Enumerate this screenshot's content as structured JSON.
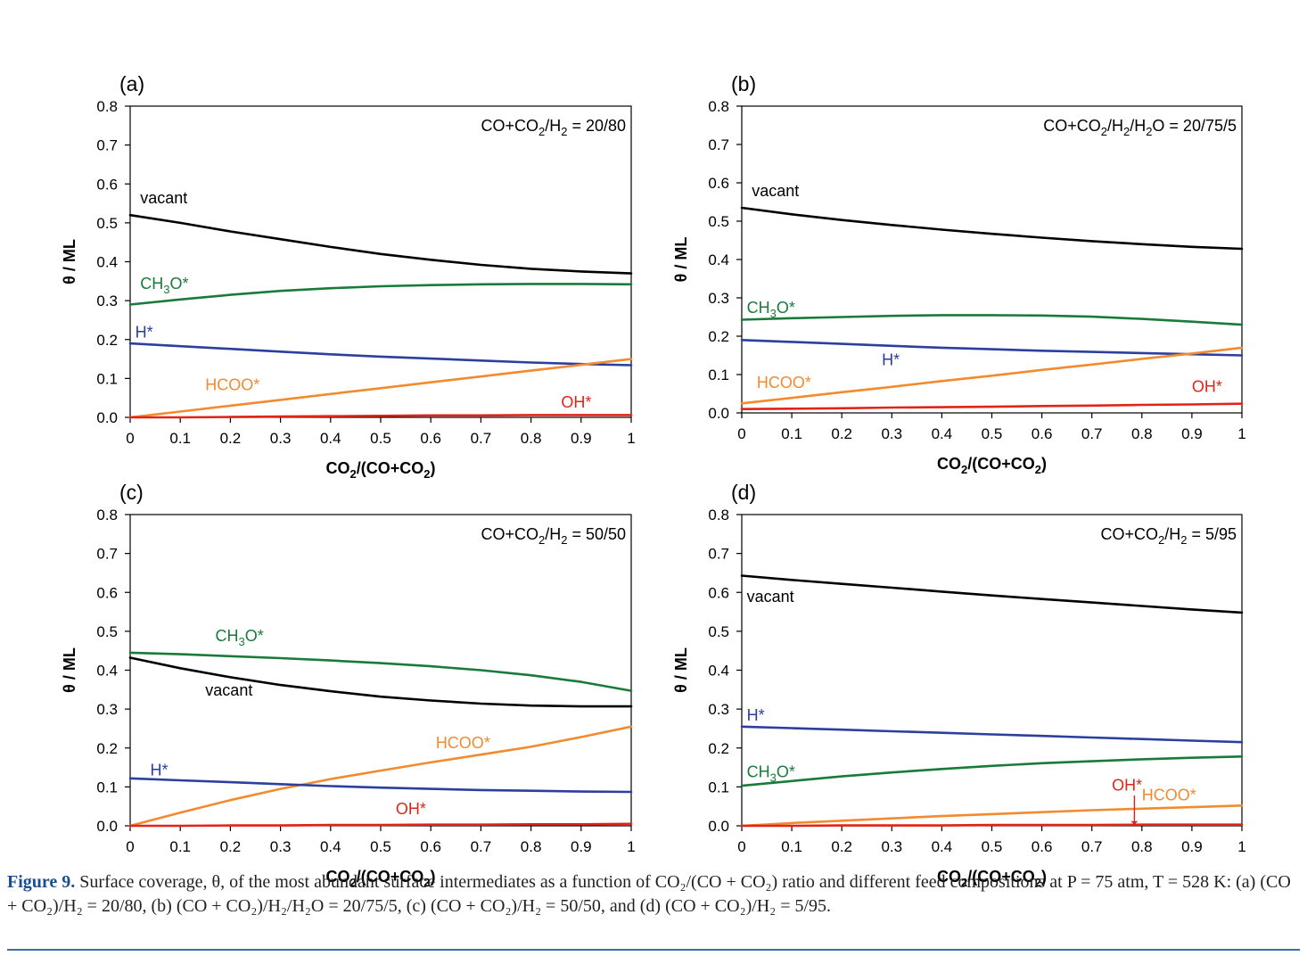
{
  "caption": {
    "label": "Figure 9.",
    "text": "Surface coverage, θ, of the most abundant surface intermediates as a function of CO₂/(CO + CO₂) ratio and different feed compositions at P = 75 atm, T = 528 K: (a) (CO + CO₂)/H₂ = 20/80, (b) (CO + CO₂)/H₂/H₂O = 20/75/5, (c) (CO + CO₂)/H₂ = 50/50, and (d) (CO + CO₂)/H₂ = 5/95."
  },
  "colors": {
    "vacant": "#000000",
    "CH3O": "#1a7a3a",
    "H": "#2b3f9e",
    "HCOO": "#f28a30",
    "OH": "#e02418"
  },
  "chart_data": [
    {
      "type": "line",
      "panel_label": "(a)",
      "annotation": "CO+CO2/H2 = 20/80",
      "xlabel": "CO2/(CO+CO2)",
      "ylabel": "θ / ML",
      "xlim": [
        0,
        1
      ],
      "ylim": [
        0,
        0.8
      ],
      "xticks": [
        "0",
        "0.1",
        "0.2",
        "0.3",
        "0.4",
        "0.5",
        "0.6",
        "0.7",
        "0.8",
        "0.9",
        "1"
      ],
      "yticks": [
        "0.0",
        "0.1",
        "0.2",
        "0.3",
        "0.4",
        "0.5",
        "0.6",
        "0.7",
        "0.8"
      ],
      "x": [
        0,
        0.1,
        0.2,
        0.3,
        0.4,
        0.5,
        0.6,
        0.7,
        0.8,
        0.9,
        1.0
      ],
      "series": [
        {
          "name": "vacant",
          "label_text": "vacant",
          "color": "#000000",
          "label_pos": [
            0.02,
            0.55
          ],
          "values": [
            0.52,
            0.5,
            0.478,
            0.458,
            0.438,
            0.42,
            0.405,
            0.392,
            0.382,
            0.375,
            0.37
          ]
        },
        {
          "name": "CH3O*",
          "label_text": "CH3O*",
          "color": "#1a7a3a",
          "label_pos": [
            0.02,
            0.33
          ],
          "values": [
            0.29,
            0.303,
            0.315,
            0.325,
            0.332,
            0.337,
            0.34,
            0.342,
            0.343,
            0.343,
            0.342
          ]
        },
        {
          "name": "H*",
          "label_text": "H*",
          "color": "#2b3f9e",
          "label_pos": [
            0.01,
            0.205
          ],
          "values": [
            0.19,
            0.183,
            0.176,
            0.169,
            0.162,
            0.156,
            0.151,
            0.146,
            0.141,
            0.137,
            0.134
          ]
        },
        {
          "name": "HCOO*",
          "label_text": "HCOO*",
          "color": "#f28a30",
          "label_pos": [
            0.15,
            0.07
          ],
          "values": [
            0.0,
            0.015,
            0.03,
            0.045,
            0.06,
            0.075,
            0.09,
            0.105,
            0.12,
            0.135,
            0.15
          ]
        },
        {
          "name": "OH*",
          "label_text": "OH*",
          "color": "#e02418",
          "label_pos": [
            0.86,
            0.025
          ],
          "values": [
            0.0,
            0.0,
            0.001,
            0.002,
            0.003,
            0.004,
            0.005,
            0.005,
            0.006,
            0.006,
            0.006
          ]
        }
      ]
    },
    {
      "type": "line",
      "panel_label": "(b)",
      "annotation": "CO+CO2/H2/H2O = 20/75/5",
      "xlabel": "CO2/(CO+CO2)",
      "ylabel": "θ / ML",
      "xlim": [
        0,
        1
      ],
      "ylim": [
        0,
        0.8
      ],
      "xticks": [
        "0",
        "0.1",
        "0.2",
        "0.3",
        "0.4",
        "0.5",
        "0.6",
        "0.7",
        "0.8",
        "0.9",
        "1"
      ],
      "yticks": [
        "0.0",
        "0.1",
        "0.2",
        "0.3",
        "0.4",
        "0.5",
        "0.6",
        "0.7",
        "0.8"
      ],
      "x": [
        0,
        0.1,
        0.2,
        0.3,
        0.4,
        0.5,
        0.6,
        0.7,
        0.8,
        0.9,
        1.0
      ],
      "series": [
        {
          "name": "vacant",
          "label_text": "vacant",
          "color": "#000000",
          "label_pos": [
            0.02,
            0.565
          ],
          "values": [
            0.535,
            0.518,
            0.503,
            0.49,
            0.478,
            0.467,
            0.457,
            0.448,
            0.44,
            0.433,
            0.428
          ]
        },
        {
          "name": "CH3O*",
          "label_text": "CH3O*",
          "color": "#1a7a3a",
          "label_pos": [
            0.01,
            0.26
          ],
          "values": [
            0.243,
            0.247,
            0.25,
            0.253,
            0.255,
            0.255,
            0.254,
            0.251,
            0.245,
            0.238,
            0.23
          ]
        },
        {
          "name": "H*",
          "label_text": "H*",
          "color": "#2b3f9e",
          "label_pos": [
            0.28,
            0.125
          ],
          "values": [
            0.19,
            0.185,
            0.18,
            0.175,
            0.17,
            0.166,
            0.162,
            0.159,
            0.156,
            0.153,
            0.15
          ]
        },
        {
          "name": "HCOO*",
          "label_text": "HCOO*",
          "color": "#f28a30",
          "label_pos": [
            0.03,
            0.065
          ],
          "values": [
            0.025,
            0.039,
            0.054,
            0.068,
            0.083,
            0.097,
            0.112,
            0.126,
            0.141,
            0.155,
            0.17
          ]
        },
        {
          "name": "OH*",
          "label_text": "OH*",
          "color": "#e02418",
          "label_pos": [
            0.9,
            0.055
          ],
          "values": [
            0.01,
            0.011,
            0.012,
            0.014,
            0.015,
            0.016,
            0.018,
            0.019,
            0.021,
            0.022,
            0.024
          ]
        }
      ]
    },
    {
      "type": "line",
      "panel_label": "(c)",
      "annotation": "CO+CO2/H2 = 50/50",
      "xlabel": "CO2/(CO+CO2)",
      "ylabel": "θ / ML",
      "xlim": [
        0,
        1
      ],
      "ylim": [
        0,
        0.8
      ],
      "xticks": [
        "0",
        "0.1",
        "0.2",
        "0.3",
        "0.4",
        "0.5",
        "0.6",
        "0.7",
        "0.8",
        "0.9",
        "1"
      ],
      "yticks": [
        "0.0",
        "0.1",
        "0.2",
        "0.3",
        "0.4",
        "0.5",
        "0.6",
        "0.7",
        "0.8"
      ],
      "x": [
        0,
        0.1,
        0.2,
        0.3,
        0.4,
        0.5,
        0.6,
        0.7,
        0.8,
        0.9,
        1.0
      ],
      "series": [
        {
          "name": "CH3O*",
          "label_text": "CH3O*",
          "color": "#1a7a3a",
          "label_pos": [
            0.17,
            0.475
          ],
          "values": [
            0.445,
            0.441,
            0.436,
            0.431,
            0.425,
            0.418,
            0.41,
            0.4,
            0.387,
            0.37,
            0.347
          ]
        },
        {
          "name": "vacant",
          "label_text": "vacant",
          "color": "#000000",
          "label_pos": [
            0.15,
            0.335
          ],
          "values": [
            0.432,
            0.405,
            0.382,
            0.362,
            0.346,
            0.332,
            0.322,
            0.314,
            0.309,
            0.307,
            0.307
          ]
        },
        {
          "name": "HCOO*",
          "label_text": "HCOO*",
          "color": "#f28a30",
          "label_pos": [
            0.61,
            0.2
          ],
          "values": [
            0.0,
            0.034,
            0.066,
            0.095,
            0.12,
            0.142,
            0.163,
            0.183,
            0.203,
            0.228,
            0.255
          ]
        },
        {
          "name": "H*",
          "label_text": "H*",
          "color": "#2b3f9e",
          "label_pos": [
            0.04,
            0.13
          ],
          "values": [
            0.122,
            0.117,
            0.112,
            0.107,
            0.102,
            0.098,
            0.095,
            0.092,
            0.09,
            0.088,
            0.087
          ]
        },
        {
          "name": "OH*",
          "label_text": "OH*",
          "color": "#e02418",
          "label_pos": [
            0.53,
            0.03
          ],
          "values": [
            0.0,
            0.0,
            0.001,
            0.001,
            0.002,
            0.002,
            0.003,
            0.003,
            0.004,
            0.004,
            0.005
          ]
        }
      ]
    },
    {
      "type": "line",
      "panel_label": "(d)",
      "annotation": "CO+CO2/H2 = 5/95",
      "xlabel": "CO2/(CO+CO2)",
      "ylabel": "θ / ML",
      "xlim": [
        0,
        1
      ],
      "ylim": [
        0,
        0.8
      ],
      "xticks": [
        "0",
        "0.1",
        "0.2",
        "0.3",
        "0.4",
        "0.5",
        "0.6",
        "0.7",
        "0.8",
        "0.9",
        "1"
      ],
      "yticks": [
        "0.0",
        "0.1",
        "0.2",
        "0.3",
        "0.4",
        "0.5",
        "0.6",
        "0.7",
        "0.8"
      ],
      "x": [
        0,
        0.1,
        0.2,
        0.3,
        0.4,
        0.5,
        0.6,
        0.7,
        0.8,
        0.9,
        1.0
      ],
      "series": [
        {
          "name": "vacant",
          "label_text": "vacant",
          "color": "#000000",
          "label_pos": [
            0.01,
            0.575
          ],
          "values": [
            0.643,
            0.632,
            0.622,
            0.612,
            0.602,
            0.592,
            0.583,
            0.574,
            0.565,
            0.556,
            0.548
          ]
        },
        {
          "name": "H*",
          "label_text": "H*",
          "color": "#2b3f9e",
          "label_pos": [
            0.01,
            0.27
          ],
          "values": [
            0.255,
            0.251,
            0.247,
            0.243,
            0.239,
            0.235,
            0.231,
            0.227,
            0.223,
            0.219,
            0.215
          ]
        },
        {
          "name": "CH3O*",
          "label_text": "CH3O*",
          "color": "#1a7a3a",
          "label_pos": [
            0.01,
            0.125
          ],
          "values": [
            0.103,
            0.115,
            0.127,
            0.137,
            0.146,
            0.154,
            0.161,
            0.166,
            0.171,
            0.175,
            0.178
          ]
        },
        {
          "name": "HCOO*",
          "label_text": "HCOO*",
          "color": "#f28a30",
          "label_pos": [
            0.8,
            0.065
          ],
          "values": [
            0.0,
            0.007,
            0.013,
            0.019,
            0.025,
            0.03,
            0.035,
            0.04,
            0.044,
            0.048,
            0.052
          ]
        },
        {
          "name": "OH*",
          "label_text": "OH*",
          "color": "#e02418",
          "label_pos": [
            0.74,
            0.09
          ],
          "values": [
            0.0,
            0.0,
            0.001,
            0.001,
            0.001,
            0.002,
            0.002,
            0.002,
            0.003,
            0.003,
            0.003
          ]
        }
      ]
    }
  ]
}
